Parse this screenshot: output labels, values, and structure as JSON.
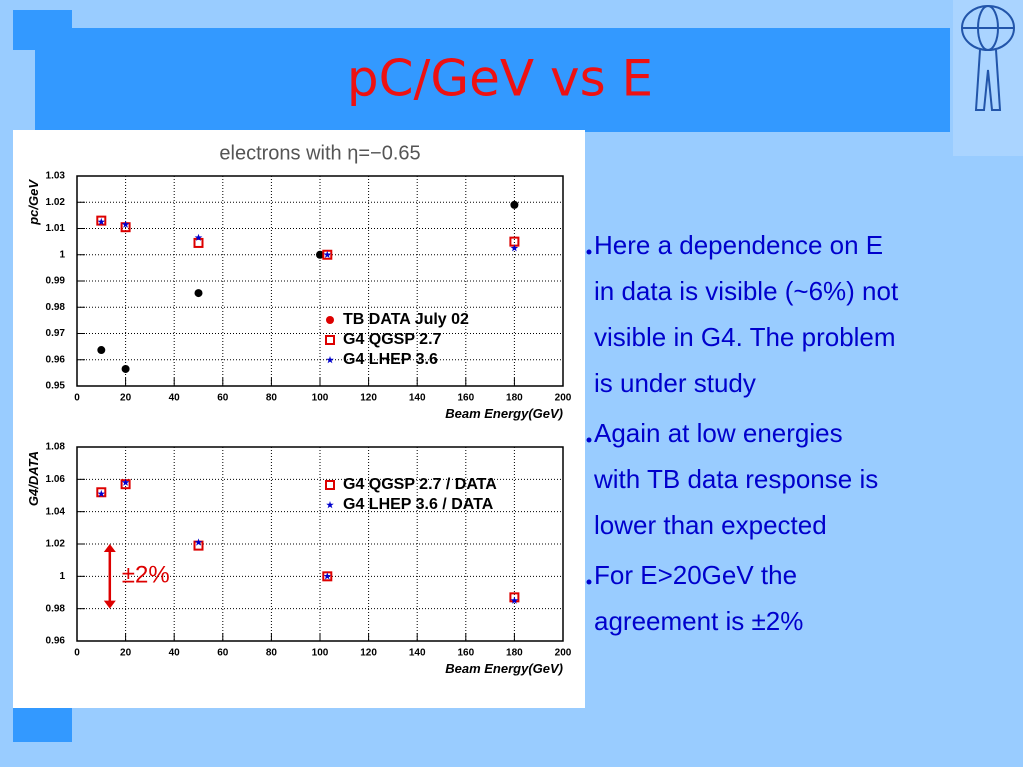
{
  "title": "pC/GeV vs E",
  "bullets": [
    [
      "Here a dependence on E",
      "in data is visible (~6%) not",
      "visible in G4. The problem",
      "is under study"
    ],
    [
      "Again at low energies",
      "with TB data response is",
      "lower than expected"
    ],
    [
      "For E>20GeV the",
      "agreement is ±2%"
    ]
  ],
  "chart_data": [
    {
      "type": "scatter",
      "title": "electrons with η=−0.65",
      "x_label": "Beam Energy(GeV)",
      "y_label": "pc/GeV",
      "xlim": [
        0,
        200
      ],
      "xticks": [
        0,
        20,
        40,
        60,
        80,
        100,
        120,
        140,
        160,
        180,
        200
      ],
      "ylim": [
        0.95,
        1.03
      ],
      "yticks": [
        0.95,
        0.96,
        0.97,
        0.98,
        0.99,
        1,
        1.01,
        1.02,
        1.03
      ],
      "grid": true,
      "legend": "lower right",
      "series": [
        {
          "name": "TB DATA July 02",
          "color": "#000000",
          "marker": "circle",
          "x": [
            10,
            20,
            50,
            100,
            180
          ],
          "values": [
            0.9637,
            0.9565,
            0.9854,
            1.0,
            1.019
          ]
        },
        {
          "name": "G4 QGSP 2.7",
          "color": "#dd0000",
          "marker": "square",
          "x": [
            10,
            20,
            50,
            103,
            180
          ],
          "values": [
            1.013,
            1.0105,
            1.0045,
            1.0,
            1.005
          ]
        },
        {
          "name": "G4 LHEP 3.6",
          "color": "#0000cc",
          "marker": "star",
          "x": [
            10,
            20,
            50,
            103,
            180
          ],
          "values": [
            1.0125,
            1.0115,
            1.0065,
            1.0,
            1.0025
          ]
        }
      ]
    },
    {
      "type": "scatter",
      "x_label": "Beam Energy(GeV)",
      "y_label": "G4/DATA",
      "xlim": [
        0,
        200
      ],
      "xticks": [
        0,
        20,
        40,
        60,
        80,
        100,
        120,
        140,
        160,
        180,
        200
      ],
      "ylim": [
        0.96,
        1.08
      ],
      "yticks": [
        0.96,
        0.98,
        1,
        1.02,
        1.04,
        1.06,
        1.08
      ],
      "grid": true,
      "legend": "upper right",
      "series": [
        {
          "name": "G4 QGSP 2.7 / DATA",
          "color": "#dd0000",
          "marker": "square",
          "x": [
            10,
            20,
            50,
            103,
            180
          ],
          "values": [
            1.052,
            1.057,
            1.019,
            1.0,
            0.987
          ]
        },
        {
          "name": "G4 LHEP 3.6 / DATA",
          "color": "#0000cc",
          "marker": "star",
          "x": [
            10,
            20,
            50,
            103,
            180
          ],
          "values": [
            1.051,
            1.058,
            1.021,
            1.0,
            0.985
          ]
        }
      ],
      "annotation": {
        "text": "±2%",
        "color": "#dd0000",
        "x": 13.5,
        "y": [
          0.98,
          1.02
        ]
      }
    }
  ]
}
